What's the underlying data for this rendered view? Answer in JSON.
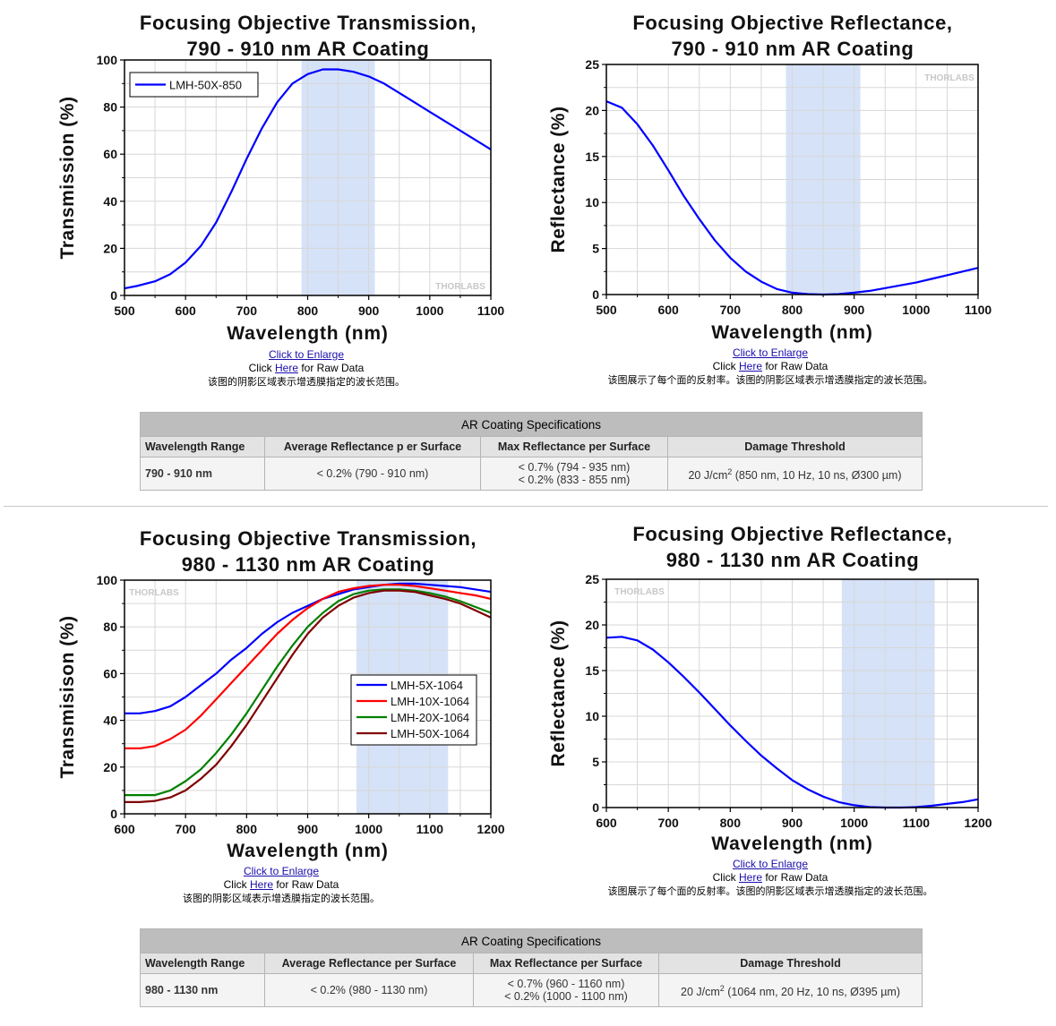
{
  "charts": [
    {
      "title_line1": "Focusing Objective Transmission,",
      "title_line2": "790 - 910 nm AR Coating",
      "xlabel": "Wavelength (nm)",
      "ylabel": "Transmission (%)",
      "watermark": "THORLABS",
      "chart_data": {
        "type": "line",
        "title": "Focusing Objective Transmission, 790 - 910 nm AR Coating",
        "xlabel": "Wavelength (nm)",
        "ylabel": "Transmission (%)",
        "xlim": [
          500,
          1100
        ],
        "ylim": [
          0,
          100
        ],
        "xticks": [
          500,
          600,
          700,
          800,
          900,
          1000,
          1100
        ],
        "yticks": [
          0,
          20,
          40,
          60,
          80,
          100
        ],
        "shaded_range": [
          790,
          910
        ],
        "legend": "top-left",
        "series": [
          {
            "name": "LMH-50X-850",
            "color": "#0000ff",
            "x": [
              500,
              520,
              550,
              575,
              600,
              625,
              650,
              675,
              700,
              725,
              750,
              775,
              800,
              825,
              850,
              875,
              900,
              925,
              950,
              975,
              1000,
              1025,
              1050,
              1075,
              1100
            ],
            "y": [
              3,
              4,
              6,
              9,
              14,
              21,
              31,
              44,
              58,
              71,
              82,
              90,
              94,
              96,
              96,
              95,
              93,
              90,
              86,
              82,
              78,
              74,
              70,
              66,
              62
            ]
          }
        ]
      },
      "caption": {
        "enlarge": "Click to Enlarge",
        "click": "Click ",
        "here": "Here",
        "raw": " for Raw Data",
        "note": "该图的阴影区域表示增透膜指定的波长范围。"
      }
    },
    {
      "title_line1": "Focusing Objective Reflectance,",
      "title_line2": "790 - 910 nm AR Coating",
      "xlabel": "Wavelength (nm)",
      "ylabel": "Reflectance (%)",
      "watermark": "THORLABS",
      "chart_data": {
        "type": "line",
        "title": "Focusing Objective Reflectance, 790 - 910 nm AR Coating",
        "xlabel": "Wavelength (nm)",
        "ylabel": "Reflectance (%)",
        "xlim": [
          500,
          1100
        ],
        "ylim": [
          0,
          25
        ],
        "xticks": [
          500,
          600,
          700,
          800,
          900,
          1000,
          1100
        ],
        "yticks": [
          0,
          5,
          10,
          15,
          20,
          25
        ],
        "shaded_range": [
          790,
          910
        ],
        "series": [
          {
            "name": "Reflectance",
            "color": "#0000ff",
            "x": [
              500,
              525,
              550,
              575,
              600,
              625,
              650,
              675,
              700,
              725,
              750,
              775,
              800,
              825,
              850,
              875,
              900,
              925,
              950,
              975,
              1000,
              1025,
              1050,
              1075,
              1100
            ],
            "y": [
              21,
              20.3,
              18.5,
              16.2,
              13.5,
              10.7,
              8.2,
              5.9,
              4.0,
              2.5,
              1.4,
              0.6,
              0.2,
              0.05,
              0.0,
              0.05,
              0.2,
              0.4,
              0.7,
              1.0,
              1.3,
              1.7,
              2.1,
              2.5,
              2.9
            ]
          }
        ]
      },
      "caption": {
        "enlarge": " Click to Enlarge",
        "click": "Click ",
        "here": "Here",
        "raw": " for Raw Data",
        "note": "该图展示了每个面的反射率。该图的阴影区域表示增透膜指定的波长范围。"
      }
    },
    {
      "title_line1": "Focusing Objective Transmission,",
      "title_line2": "980 - 1130 nm AR Coating",
      "xlabel": "Wavelength (nm)",
      "ylabel": "Transmisison (%)",
      "watermark": "THORLABS",
      "chart_data": {
        "type": "line",
        "title": "Focusing Objective Transmission, 980 - 1130 nm AR Coating",
        "xlabel": "Wavelength (nm)",
        "ylabel": "Transmisison (%)",
        "xlim": [
          600,
          1200
        ],
        "ylim": [
          0,
          100
        ],
        "xticks": [
          600,
          700,
          800,
          900,
          1000,
          1100,
          1200
        ],
        "yticks": [
          0,
          20,
          40,
          60,
          80,
          100
        ],
        "shaded_range": [
          980,
          1130
        ],
        "legend": "center-right",
        "series": [
          {
            "name": "LMH-5X-1064",
            "color": "#0000ff",
            "x": [
              600,
              625,
              650,
              675,
              700,
              725,
              750,
              775,
              800,
              825,
              850,
              875,
              900,
              925,
              950,
              975,
              1000,
              1025,
              1050,
              1075,
              1100,
              1125,
              1150,
              1175,
              1200
            ],
            "y": [
              43,
              43,
              44,
              46,
              50,
              55,
              60,
              66,
              71,
              77,
              82,
              86,
              89,
              92,
              94,
              96,
              97,
              98,
              98.5,
              98.5,
              98,
              97.5,
              97,
              96,
              95
            ]
          },
          {
            "name": "LMH-10X-1064",
            "color": "#ff0000",
            "x": [
              600,
              625,
              650,
              675,
              700,
              725,
              750,
              775,
              800,
              825,
              850,
              875,
              900,
              925,
              950,
              975,
              1000,
              1025,
              1050,
              1075,
              1100,
              1125,
              1150,
              1175,
              1200
            ],
            "y": [
              28,
              28,
              29,
              32,
              36,
              42,
              49,
              56,
              63,
              70,
              77,
              83,
              88,
              92,
              95,
              96.5,
              97.5,
              98,
              98,
              97.5,
              96.5,
              95.5,
              94.5,
              93.5,
              92
            ]
          },
          {
            "name": "LMH-20X-1064",
            "color": "#008000",
            "x": [
              600,
              625,
              650,
              675,
              700,
              725,
              750,
              775,
              800,
              825,
              850,
              875,
              900,
              925,
              950,
              975,
              1000,
              1025,
              1050,
              1075,
              1100,
              1125,
              1150,
              1175,
              1200
            ],
            "y": [
              8,
              8,
              8,
              10,
              14,
              19,
              26,
              34,
              43,
              53,
              63,
              72,
              80,
              86,
              91,
              94,
              95.5,
              96,
              96,
              95.5,
              94.5,
              93,
              91,
              88.5,
              86
            ]
          },
          {
            "name": "LMH-50X-1064",
            "color": "#800000",
            "x": [
              600,
              625,
              650,
              675,
              700,
              725,
              750,
              775,
              800,
              825,
              850,
              875,
              900,
              925,
              950,
              975,
              1000,
              1025,
              1050,
              1075,
              1100,
              1125,
              1150,
              1175,
              1200
            ],
            "y": [
              5,
              5,
              5.5,
              7,
              10,
              15,
              21,
              29,
              38,
              48,
              58,
              68,
              77,
              84,
              89,
              92.5,
              94.5,
              95.5,
              95.5,
              95,
              93.5,
              92,
              90,
              87,
              84
            ]
          }
        ]
      },
      "caption": {
        "enlarge": "Click to Enlarge",
        "click": "Click ",
        "here": "Here",
        "raw": " for Raw Data",
        "note": "该图的阴影区域表示增透膜指定的波长范围。"
      }
    },
    {
      "title_line1": "Focusing Objective Reflectance,",
      "title_line2": "980 - 1130 nm AR Coating",
      "xlabel": "Wavelength (nm)",
      "ylabel": "Reflectance (%)",
      "watermark": "THORLABS",
      "chart_data": {
        "type": "line",
        "title": "Focusing Objective Reflectance, 980 - 1130 nm AR Coating",
        "xlabel": "Wavelength (nm)",
        "ylabel": "Reflectance (%)",
        "xlim": [
          600,
          1200
        ],
        "ylim": [
          0,
          25
        ],
        "xticks": [
          600,
          700,
          800,
          900,
          1000,
          1100,
          1200
        ],
        "yticks": [
          0,
          5,
          10,
          15,
          20,
          25
        ],
        "shaded_range": [
          980,
          1130
        ],
        "series": [
          {
            "name": "Reflectance",
            "color": "#0000ff",
            "x": [
              600,
              625,
              650,
              675,
              700,
              725,
              750,
              775,
              800,
              825,
              850,
              875,
              900,
              925,
              950,
              975,
              1000,
              1025,
              1050,
              1075,
              1100,
              1125,
              1150,
              1175,
              1200
            ],
            "y": [
              18.6,
              18.7,
              18.3,
              17.3,
              15.9,
              14.3,
              12.6,
              10.8,
              9.0,
              7.3,
              5.7,
              4.3,
              3.0,
              2.0,
              1.2,
              0.6,
              0.25,
              0.05,
              0.0,
              0.0,
              0.05,
              0.2,
              0.4,
              0.6,
              0.9
            ]
          }
        ]
      },
      "caption": {
        "enlarge": "Click to Enlarge",
        "click": "Click ",
        "here": "Here",
        "raw": " for Raw Data",
        "note": "该图展示了每个面的反射率。该图的阴影区域表示增透膜指定的波长范围。"
      }
    }
  ],
  "tables": [
    {
      "title": "AR Coating Specifications",
      "headers": [
        "Wavelength Range",
        "Average Reflectance p er Surface",
        "Max Reflectance per Surface",
        "Damage Threshold"
      ],
      "row": {
        "range": "790 - 910 nm",
        "avg": "< 0.2% (790 - 910 nm)",
        "max1": "< 0.7% (794 - 935 nm)",
        "max2": "< 0.2% (833 - 855 nm)",
        "damage_pre": "20 J/cm",
        "damage_sup": "2",
        "damage_post": " (850 nm, 10 Hz, 10 ns, Ø300 µm)"
      }
    },
    {
      "title": "AR Coating Specifications",
      "headers": [
        "Wavelength Range",
        "Average Reflectance per Surface",
        "Max Reflectance per Surface",
        "Damage Threshold"
      ],
      "row": {
        "range": "980 - 1130 nm",
        "avg": "< 0.2% (980 - 1130 nm)",
        "max1": "< 0.7% (960 - 1160 nm)",
        "max2": "< 0.2% (1000 - 1100 nm)",
        "damage_pre": "20 J/cm",
        "damage_sup": "2",
        "damage_post": " (1064 nm, 20 Hz, 10 ns, Ø395 µm)"
      }
    }
  ]
}
